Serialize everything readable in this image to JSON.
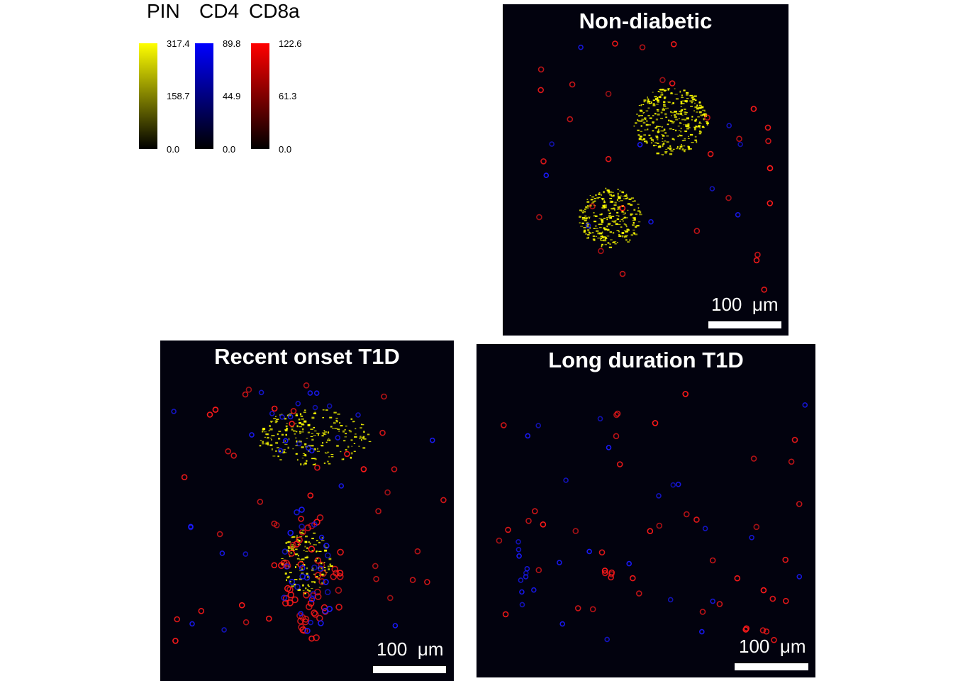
{
  "legend": {
    "channels": [
      {
        "name": "PIN",
        "color": "#ffff00",
        "max": "317.4",
        "mid": "158.7",
        "min": "0.0"
      },
      {
        "name": "CD4",
        "color": "#0000ff",
        "max": "89.8",
        "mid": "44.9",
        "min": "0.0"
      },
      {
        "name": "CD8a",
        "color": "#ff0000",
        "max": "122.6",
        "mid": "61.3",
        "min": "0.0"
      }
    ]
  },
  "panels": [
    {
      "title": "Non-diabetic",
      "scale_number": "100",
      "scale_unit": "μm"
    },
    {
      "title": "Recent onset T1D",
      "scale_number": "100",
      "scale_unit": "μm"
    },
    {
      "title": "Long duration T1D",
      "scale_number": "100",
      "scale_unit": "μm"
    }
  ],
  "colors": {
    "background": "#02020e",
    "pin": "#ffff00",
    "cd4": "#1a1aff",
    "cd8a": "#ff1a1a"
  }
}
